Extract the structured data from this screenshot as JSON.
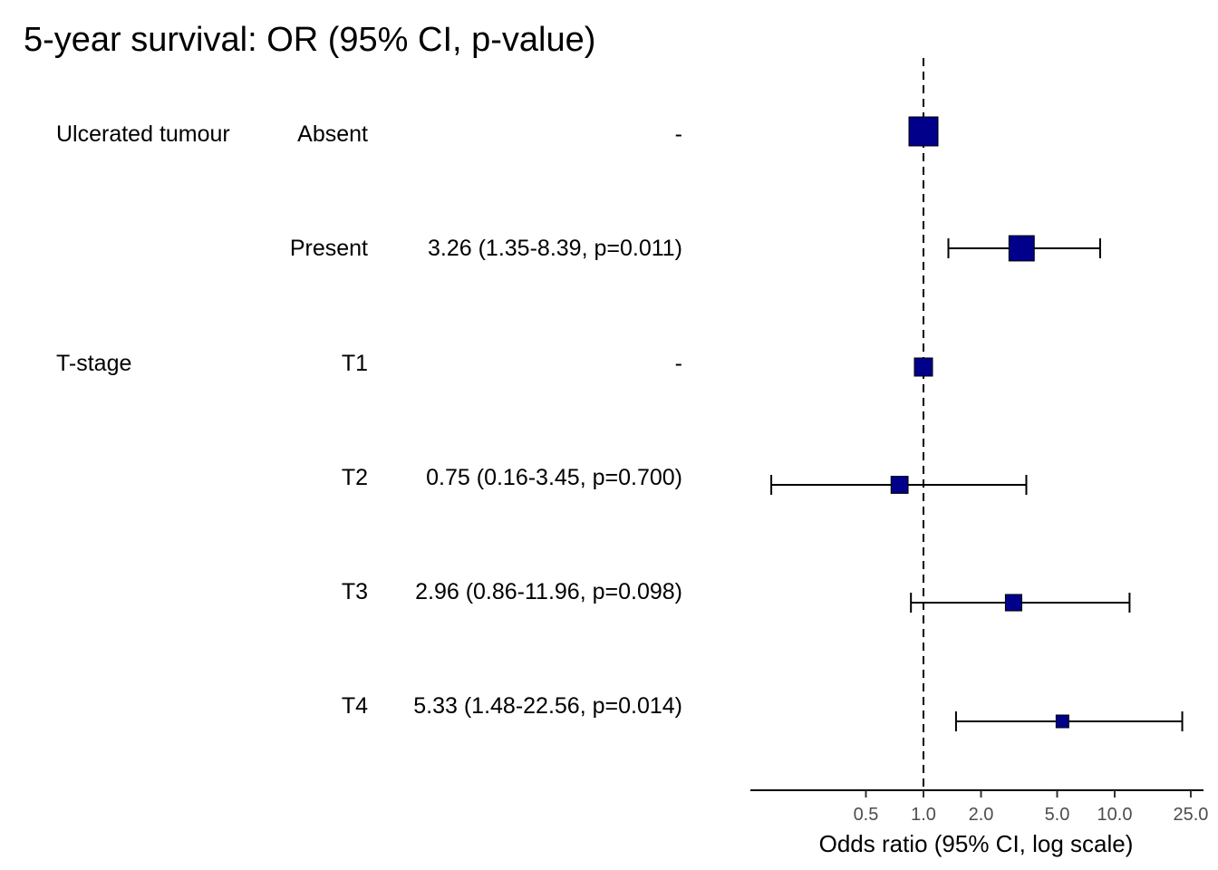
{
  "chart_data": {
    "type": "forest",
    "title": "5-year survival: OR (95% CI, p-value)",
    "xlabel": "Odds ratio (95% CI, log scale)",
    "x_scale": "log",
    "x_ticks": [
      "0.5",
      "1.0",
      "2.0",
      "5.0",
      "10.0",
      "25.0"
    ],
    "reference_line": 1.0,
    "rows": [
      {
        "variable": "Ulcerated tumour",
        "level": "Absent",
        "label": "-",
        "or": 1.0,
        "lower": null,
        "upper": null,
        "weight": 1.0
      },
      {
        "variable": "",
        "level": "Present",
        "label": "3.26 (1.35-8.39, p=0.011)",
        "or": 3.26,
        "lower": 1.35,
        "upper": 8.39,
        "weight": 0.83
      },
      {
        "variable": "T-stage",
        "level": "T1",
        "label": "-",
        "or": 1.0,
        "lower": null,
        "upper": null,
        "weight": 0.5
      },
      {
        "variable": "",
        "level": "T2",
        "label": "0.75 (0.16-3.45, p=0.700)",
        "or": 0.75,
        "lower": 0.16,
        "upper": 3.45,
        "weight": 0.45
      },
      {
        "variable": "",
        "level": "T3",
        "label": "2.96 (0.86-11.96, p=0.098)",
        "or": 2.96,
        "lower": 0.86,
        "upper": 11.96,
        "weight": 0.42
      },
      {
        "variable": "",
        "level": "T4",
        "label": "5.33 (1.48-22.56, p=0.014)",
        "or": 5.33,
        "lower": 1.48,
        "upper": 22.56,
        "weight": 0.25
      }
    ],
    "colors": {
      "point": "#00008B",
      "line": "#000000",
      "tick_text": "#4d4d4d"
    }
  }
}
